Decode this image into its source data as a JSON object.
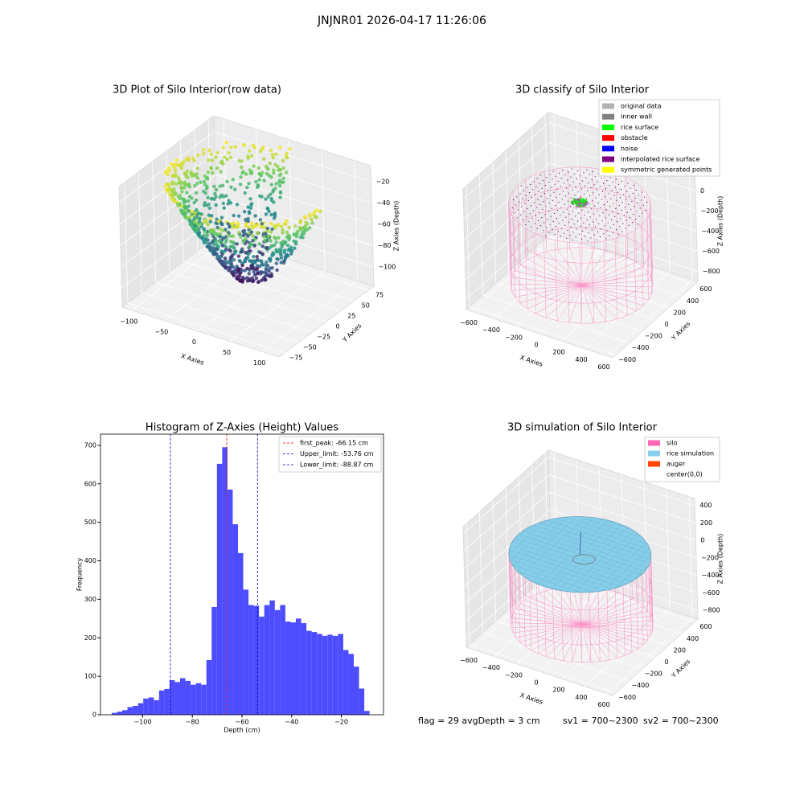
{
  "title": "JNJNR01 2026-04-17 11:26:06",
  "chart_data": [
    {
      "type": "scatter3d",
      "title": "3D Plot of Silo Interior(row data)",
      "xlabel": "X Axies",
      "ylabel": "Y Axies",
      "zlabel": "Z Axies (Depth)",
      "xlim": [
        -115,
        125
      ],
      "ylim": [
        -85,
        85
      ],
      "zlim": [
        -118,
        -5
      ],
      "xticks": [
        {
          "value": -100,
          "label": "−100"
        },
        {
          "value": -50,
          "label": "−50"
        },
        0,
        50,
        100
      ],
      "yticks": [
        {
          "value": -75,
          "label": "−75"
        },
        {
          "value": -50,
          "label": "−50"
        },
        {
          "value": -25,
          "label": "−25"
        },
        0,
        25,
        50,
        75
      ],
      "zticks": [
        {
          "value": -100,
          "label": "−100"
        },
        {
          "value": -80,
          "label": "−80"
        },
        {
          "value": -60,
          "label": "−60"
        },
        {
          "value": -40,
          "label": "−40"
        },
        {
          "value": -20,
          "label": "−20"
        }
      ]
    },
    {
      "type": "classify3d",
      "title": "3D classify of Silo Interior",
      "xlabel": "X Axies",
      "ylabel": "Y Axies",
      "zlabel": "Z Axies (Depth)",
      "xlim": [
        -650,
        650
      ],
      "ylim": [
        -650,
        650
      ],
      "zlim": [
        -900,
        300
      ],
      "xticks": [
        {
          "value": -600,
          "label": "−600"
        },
        {
          "value": -400,
          "label": "−400"
        },
        {
          "value": -200,
          "label": "−200"
        },
        0,
        200,
        400,
        600
      ],
      "yticks": [
        {
          "value": -600,
          "label": "−600"
        },
        {
          "value": -400,
          "label": "−400"
        },
        {
          "value": -200,
          "label": "−200"
        },
        0,
        200,
        400,
        600
      ],
      "zticks": [
        {
          "value": -800,
          "label": "−800"
        },
        {
          "value": -600,
          "label": "−600"
        },
        {
          "value": -400,
          "label": "−400"
        },
        {
          "value": -200,
          "label": "−200"
        },
        0,
        200
      ],
      "legend": [
        {
          "name": "original data",
          "color": "#b3b3b3"
        },
        {
          "name": "inner wall",
          "color": "#808080"
        },
        {
          "name": "rice surface",
          "color": "#00ff00"
        },
        {
          "name": "obstacle",
          "color": "#ff0000"
        },
        {
          "name": "noise",
          "color": "#0000ff"
        },
        {
          "name": "interpolated rice surface",
          "color": "#800080"
        },
        {
          "name": "symmetric generated points",
          "color": "#ffff00"
        }
      ]
    },
    {
      "type": "histogram",
      "title": "Histogram of Z-Axies (Height) Values",
      "xlabel": "Depth (cm)",
      "ylabel": "Frequency",
      "color": "#4d4dff",
      "xlim": [
        -117,
        -3
      ],
      "ylim": [
        0,
        729
      ],
      "xticks": [
        {
          "value": -100,
          "label": "−100"
        },
        {
          "value": -80,
          "label": "−80"
        },
        {
          "value": -60,
          "label": "−60"
        },
        {
          "value": -40,
          "label": "−40"
        },
        {
          "value": -20,
          "label": "−20"
        }
      ],
      "yticks": [
        0,
        100,
        200,
        300,
        400,
        500,
        600,
        700
      ],
      "bins": [
        -112.5,
        -110.38,
        -108.26,
        -106.14,
        -104.02,
        -101.9,
        -99.78,
        -97.66,
        -95.54,
        -93.42,
        -91.3,
        -89.18,
        -87.06,
        -84.94,
        -82.82,
        -80.7,
        -78.58,
        -76.46,
        -74.34,
        -72.22,
        -70.1,
        -67.98,
        -65.86,
        -63.74,
        -61.62,
        -59.5,
        -57.38,
        -55.26,
        -53.14,
        -51.02,
        -48.9,
        -46.78,
        -44.66,
        -42.54,
        -40.42,
        -38.3,
        -36.18,
        -34.06,
        -31.94,
        -29.82,
        -27.7,
        -25.58,
        -23.46,
        -21.34,
        -19.22,
        -17.1,
        -14.98,
        -12.86,
        -10.74,
        -8.62
      ],
      "values": [
        5,
        8,
        12,
        20,
        23,
        30,
        42,
        45,
        38,
        63,
        67,
        90,
        85,
        95,
        88,
        78,
        82,
        78,
        142,
        280,
        652,
        695,
        585,
        495,
        420,
        325,
        285,
        283,
        255,
        285,
        297,
        272,
        285,
        242,
        240,
        250,
        238,
        218,
        215,
        210,
        205,
        208,
        205,
        210,
        168,
        158,
        125,
        68,
        10
      ],
      "lines": [
        {
          "value": -66.15,
          "label": "first_peak: -66.15 cm",
          "color": "#ff0000"
        },
        {
          "value": -53.76,
          "label": "Upper_limit: -53.76 cm",
          "color": "#0000cc"
        },
        {
          "value": -88.87,
          "label": "Lower_limit: -88.87 cm",
          "color": "#0000cc"
        }
      ],
      "legend_position": "upper right"
    },
    {
      "type": "simulation3d",
      "title": "3D simulation of Silo Interior",
      "xlabel": "X Axies",
      "ylabel": "Y Axies",
      "zlabel": "Z Axies (Depth)",
      "xlim": [
        -650,
        650
      ],
      "ylim": [
        -650,
        650
      ],
      "zlim": [
        -900,
        480
      ],
      "xticks": [
        {
          "value": -600,
          "label": "−600"
        },
        {
          "value": -400,
          "label": "−400"
        },
        {
          "value": -200,
          "label": "−200"
        },
        0,
        200,
        400,
        600
      ],
      "yticks": [
        {
          "value": -600,
          "label": "−600"
        },
        {
          "value": -400,
          "label": "−400"
        },
        {
          "value": -200,
          "label": "−200"
        },
        0,
        200,
        400,
        600
      ],
      "zticks": [
        {
          "value": -800,
          "label": "−800"
        },
        {
          "value": -600,
          "label": "−600"
        },
        {
          "value": -400,
          "label": "−400"
        },
        {
          "value": -200,
          "label": "−200"
        },
        0,
        200,
        400
      ],
      "legend": [
        {
          "name": "silo",
          "color": "#ff69b4"
        },
        {
          "name": "rice simulation",
          "color": "#87ceeb"
        },
        {
          "name": "auger",
          "color": "#ff4500"
        },
        {
          "name": "center(0,0)",
          "color": "#ffffff"
        }
      ]
    }
  ],
  "footer": [
    "flag = 29  avgDepth = 3 cm",
    "sv1 = 700~2300",
    "sv2 = 700~2300"
  ]
}
